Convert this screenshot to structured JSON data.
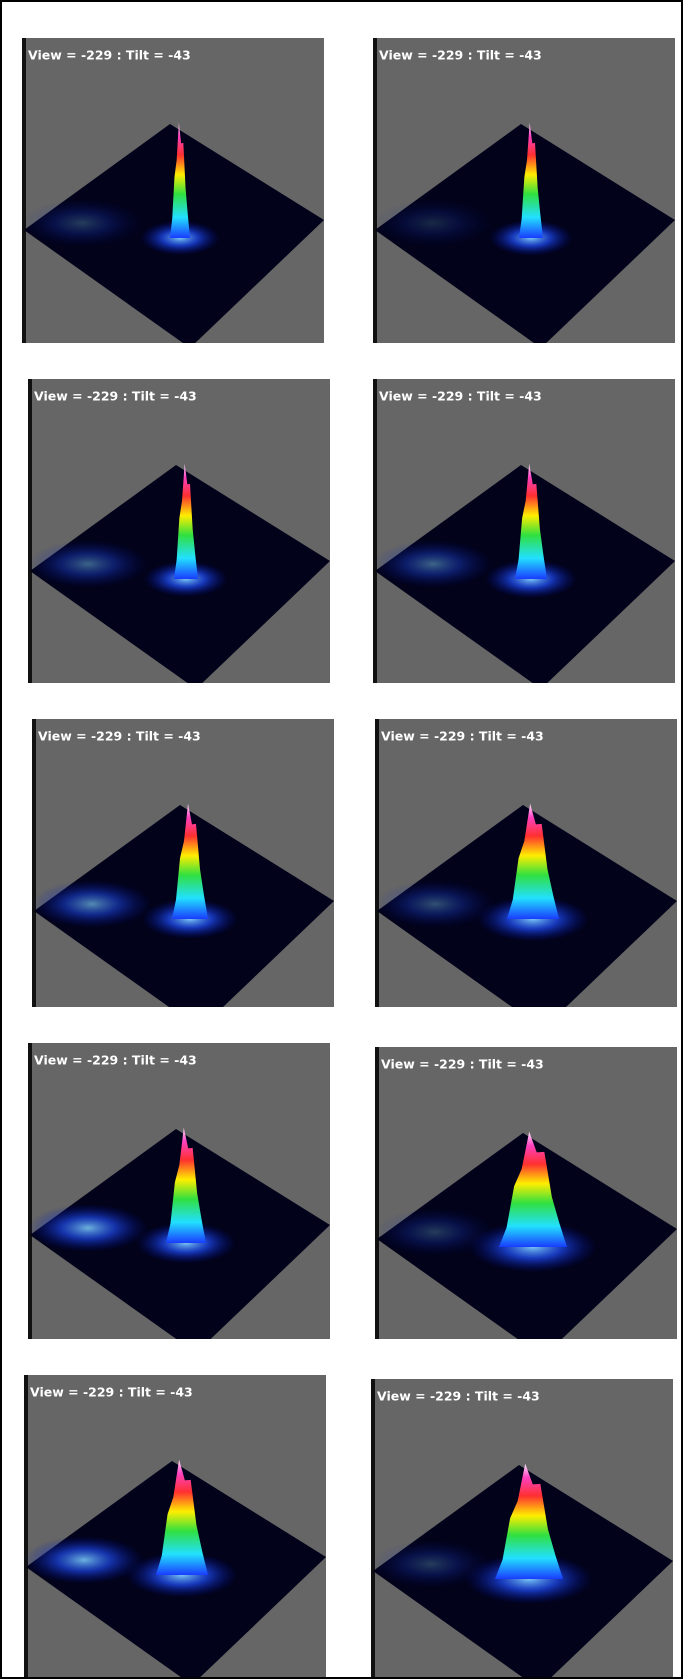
{
  "table": {
    "rows": [
      [
        "View = -229 : Tilt = -43",
        "View = -229 : Tilt = -43"
      ],
      [
        "View = -229 : Tilt = -43",
        "View = -229 : Tilt = -43"
      ],
      [
        "View = -229 : Tilt = -43",
        "View = -229 : Tilt = -43"
      ],
      [
        "View = -229 : Tilt = -43",
        "View = -229 : Tilt = -43"
      ],
      [
        "View = -229 : Tilt = -43",
        "View = -229 : Tilt = -43"
      ]
    ]
  }
}
